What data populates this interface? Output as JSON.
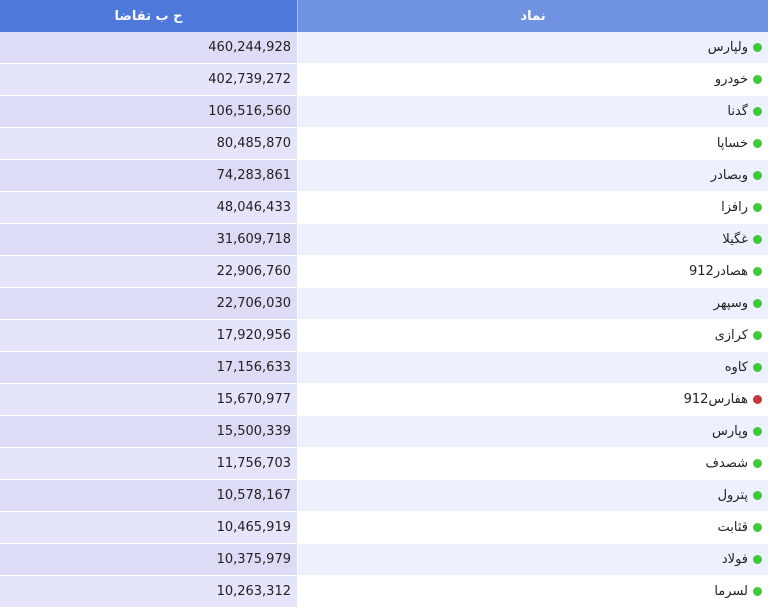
{
  "header": {
    "value_label": "ح ب تقاضا",
    "symbol_label": "نماد"
  },
  "colors": {
    "up": "#3cc93c",
    "down": "#c0393f"
  },
  "rows": [
    {
      "symbol": "ولپارس",
      "value": "460,244,928",
      "status": "up"
    },
    {
      "symbol": "خودرو",
      "value": "402,739,272",
      "status": "up"
    },
    {
      "symbol": "گدنا",
      "value": "106,516,560",
      "status": "up"
    },
    {
      "symbol": "خساپا",
      "value": "80,485,870",
      "status": "up"
    },
    {
      "symbol": "وبصادر",
      "value": "74,283,861",
      "status": "up"
    },
    {
      "symbol": "رافزا",
      "value": "48,046,433",
      "status": "up"
    },
    {
      "symbol": "غگیلا",
      "value": "31,609,718",
      "status": "up"
    },
    {
      "symbol": "هصادر912",
      "value": "22,906,760",
      "status": "up"
    },
    {
      "symbol": "وسپهر",
      "value": "22,706,030",
      "status": "up"
    },
    {
      "symbol": "کرازی",
      "value": "17,920,956",
      "status": "up"
    },
    {
      "symbol": "کاوه",
      "value": "17,156,633",
      "status": "up"
    },
    {
      "symbol": "هفارس912",
      "value": "15,670,977",
      "status": "down"
    },
    {
      "symbol": "وپارس",
      "value": "15,500,339",
      "status": "up"
    },
    {
      "symbol": "شصدف",
      "value": "11,756,703",
      "status": "up"
    },
    {
      "symbol": "پترول",
      "value": "10,578,167",
      "status": "up"
    },
    {
      "symbol": "قثابت",
      "value": "10,465,919",
      "status": "up"
    },
    {
      "symbol": "فولاد",
      "value": "10,375,979",
      "status": "up"
    },
    {
      "symbol": "لسرما",
      "value": "10,263,312",
      "status": "up"
    }
  ]
}
